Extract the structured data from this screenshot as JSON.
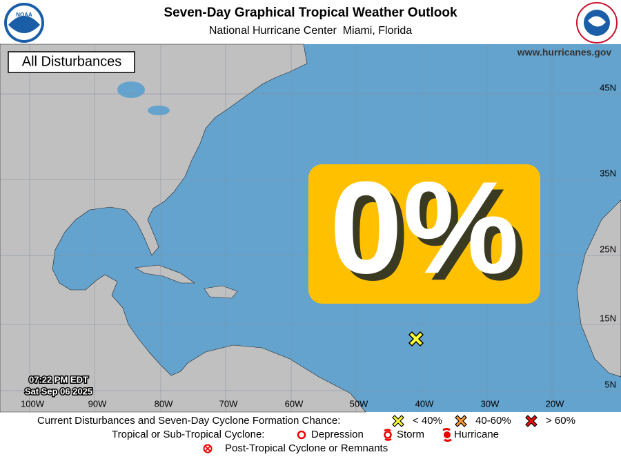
{
  "header": {
    "title": "Seven-Day Graphical Tropical Weather Outlook",
    "subtitle": "National Hurricane Center  Miami, Florida"
  },
  "map": {
    "panel_label": "All Disturbances",
    "website": "www.hurricanes.gov",
    "timestamp": [
      "07:22 PM EDT",
      "Sat Sep 06 2025"
    ],
    "chance": "0%",
    "lat_labels": [
      "45N",
      "35N",
      "25N",
      "15N",
      "5N"
    ],
    "lon_labels": [
      "100W",
      "90W",
      "80W",
      "70W",
      "60W",
      "50W",
      "40W",
      "30W",
      "20W"
    ]
  },
  "legend": {
    "disturbances": {
      "label": "Current Disturbances and Seven-Day Cyclone Formation Chance:",
      "items": [
        "< 40%",
        "40-60%",
        "> 60%"
      ]
    },
    "cyclones": {
      "label": "Tropical or Sub-Tropical Cyclone:",
      "items": [
        "Depression",
        "Storm",
        "Hurricane"
      ]
    },
    "post_tropical": "Post-Tropical Cyclone or Remnants"
  }
}
